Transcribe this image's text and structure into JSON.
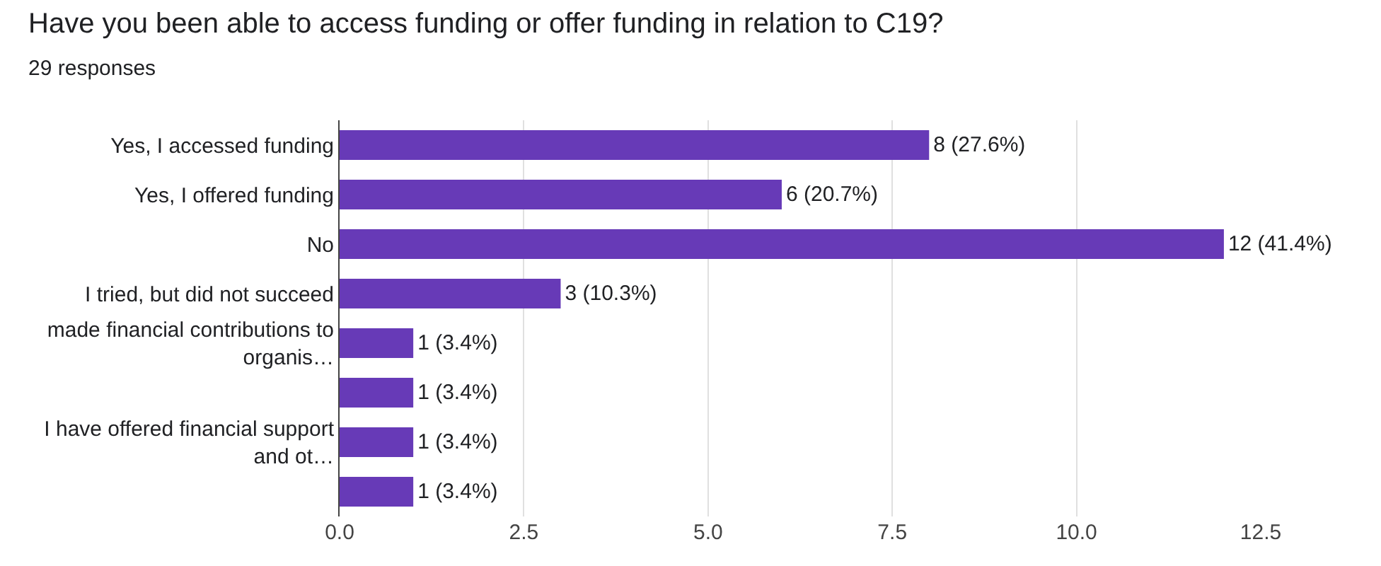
{
  "chart_data": {
    "type": "bar",
    "orientation": "horizontal",
    "title": "Have you been able to access funding or offer funding in relation to C19?",
    "subtitle": "29 responses",
    "categories": [
      "Yes, I accessed funding",
      "Yes, I offered funding",
      "No",
      "I tried, but did not succeed",
      "made financial contributions to organis…",
      null,
      "I have offered financial support and ot…",
      null
    ],
    "values": [
      8,
      6,
      12,
      3,
      1,
      1,
      1,
      1
    ],
    "value_labels": [
      "8 (27.6%)",
      "6 (20.7%)",
      "12 (41.4%)",
      "3 (10.3%)",
      "1 (3.4%)",
      "1 (3.4%)",
      "1 (3.4%)",
      "1 (3.4%)"
    ],
    "color": "#673ab7",
    "xlim": [
      0,
      12.5
    ],
    "xticks": [
      {
        "value": 0,
        "label": "0.0"
      },
      {
        "value": 2.5,
        "label": "2.5"
      },
      {
        "value": 5,
        "label": "5.0"
      },
      {
        "value": 7.5,
        "label": "7.5"
      },
      {
        "value": 10,
        "label": "10.0"
      },
      {
        "value": 12.5,
        "label": "12.5"
      }
    ],
    "grid": "x"
  }
}
